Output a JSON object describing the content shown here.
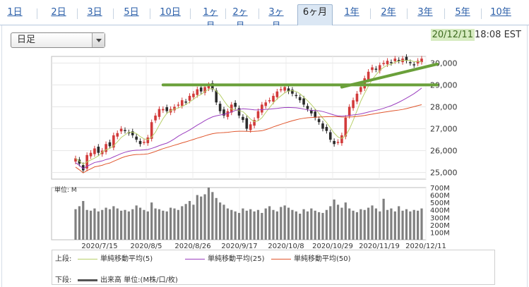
{
  "tabs": [
    {
      "label": "1日",
      "active": false
    },
    {
      "label": "2日",
      "active": false
    },
    {
      "label": "3日",
      "active": false
    },
    {
      "label": "5日",
      "active": false
    },
    {
      "label": "10日",
      "active": false
    },
    {
      "label": "1ヶ月",
      "active": false
    },
    {
      "label": "2ヶ月",
      "active": false
    },
    {
      "label": "3ヶ月",
      "active": false
    },
    {
      "label": "6ヶ月",
      "active": true
    },
    {
      "label": "1年",
      "active": false
    },
    {
      "label": "2年",
      "active": false
    },
    {
      "label": "3年",
      "active": false
    },
    {
      "label": "5年",
      "active": false
    },
    {
      "label": "10年",
      "active": false
    }
  ],
  "period_select": {
    "value": "日足"
  },
  "timestamp": {
    "date": "20/12/11",
    "time": "18:08 EST"
  },
  "colors": {
    "up_candle": "#d23b3b",
    "down_candle": "#2b2b2b",
    "ma5": "#b8d06a",
    "ma25": "#9b3fbf",
    "ma50": "#e0562d",
    "trendline": "#6aa03a",
    "volume": "#808080",
    "date_highlight": "#d8ecc2"
  },
  "chart_data": {
    "type": "candlestick",
    "price_axis": {
      "ticks": [
        25000,
        26000,
        27000,
        28000,
        29000,
        30000
      ],
      "tick_labels": [
        "25,000",
        "26,000",
        "27,000",
        "28,000",
        "29,000",
        "30,000"
      ],
      "ylim": [
        24700,
        30300
      ]
    },
    "volume_axis": {
      "unit_label": "単位: M",
      "ticks": [
        100,
        200,
        300,
        400,
        500,
        600,
        700
      ],
      "tick_labels": [
        "100M",
        "200M",
        "300M",
        "400M",
        "500M",
        "600M",
        "700M"
      ],
      "ylim": [
        0,
        700
      ]
    },
    "x_tick_labels": [
      "2020/7/15",
      "2020/8/5",
      "2020/8/26",
      "2020/9/17",
      "2020/10/8",
      "2020/10/29",
      "2020/11/19",
      "2020/12/11"
    ],
    "close": [
      25650,
      25400,
      25100,
      25800,
      25900,
      26100,
      25900,
      26000,
      26300,
      26200,
      26700,
      26800,
      27000,
      26900,
      26800,
      26700,
      26500,
      26300,
      26400,
      26600,
      27300,
      27600,
      27900,
      27900,
      27800,
      27900,
      28000,
      28100,
      28300,
      28200,
      28500,
      28600,
      28800,
      28700,
      28900,
      29000,
      28800,
      28200,
      27800,
      27600,
      27800,
      28100,
      28000,
      27600,
      27400,
      27000,
      27200,
      27400,
      27800,
      28100,
      28200,
      28300,
      28500,
      28700,
      28800,
      28900,
      28700,
      28600,
      28500,
      28300,
      28100,
      27900,
      27700,
      27500,
      27300,
      27000,
      26900,
      26500,
      26300,
      26400,
      26700,
      27500,
      28000,
      28300,
      28600,
      28900,
      29300,
      29600,
      29800,
      29700,
      29900,
      30000,
      30100,
      30000,
      30200,
      30100,
      30200,
      30100,
      30000,
      29900,
      30100,
      30200
    ],
    "volume": [
      410,
      450,
      520,
      400,
      390,
      420,
      380,
      400,
      430,
      410,
      450,
      420,
      390,
      400,
      380,
      410,
      460,
      430,
      400,
      380,
      500,
      420,
      410,
      390,
      380,
      430,
      420,
      400,
      450,
      480,
      520,
      470,
      600,
      580,
      610,
      700,
      640,
      560,
      500,
      470,
      420,
      400,
      380,
      360,
      420,
      390,
      410,
      380,
      400,
      360,
      420,
      450,
      400,
      380,
      440,
      460,
      430,
      400,
      380,
      350,
      410,
      380,
      420,
      390,
      370,
      360,
      400,
      450,
      540,
      470,
      430,
      500,
      420,
      390,
      370,
      410,
      400,
      430,
      460,
      420,
      380,
      550,
      400,
      420,
      380,
      450,
      390,
      410,
      380,
      400,
      390,
      420
    ],
    "trendlines": [
      {
        "name": "resistance",
        "from": [
          23,
          29000
        ],
        "to": [
          91,
          29000
        ]
      },
      {
        "name": "support",
        "from": [
          70,
          28900
        ],
        "to": [
          91,
          29950
        ]
      }
    ]
  },
  "legend": {
    "upper_label": "上段:",
    "lower_label": "下段:",
    "items": [
      {
        "label": "単純移動平均(5)",
        "color": "#b8d06a"
      },
      {
        "label": "単純移動平均(25)",
        "color": "#9b3fbf"
      },
      {
        "label": "単純移動平均(50)",
        "color": "#e0562d"
      }
    ],
    "volume_item": {
      "label": "出来高 単位:(M株/口/枚)",
      "color": "#555555"
    }
  }
}
